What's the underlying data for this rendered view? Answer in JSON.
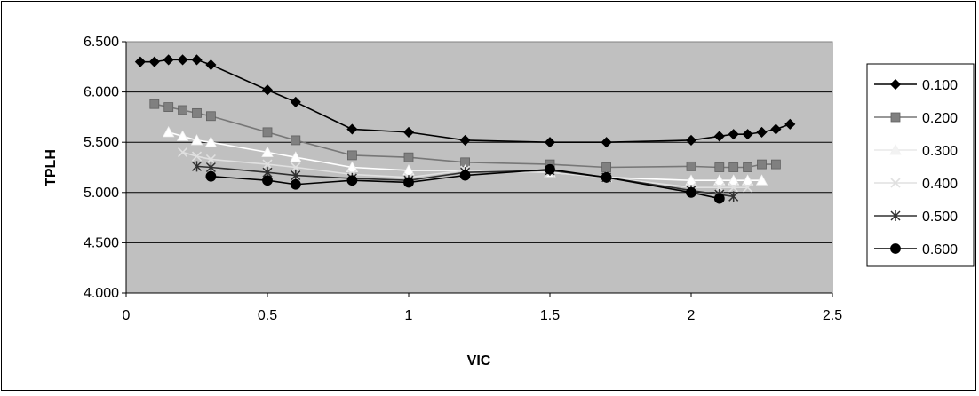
{
  "chart_data": {
    "type": "line",
    "xlabel": "VIC",
    "ylabel": "TPLH",
    "xlim": [
      0,
      2.5
    ],
    "ylim": [
      4.0,
      6.5
    ],
    "x_ticks": [
      "0",
      "0.5",
      "1",
      "1.5",
      "2",
      "2.5"
    ],
    "y_ticks": [
      "4.000",
      "4.500",
      "5.000",
      "5.500",
      "6.000",
      "6.500"
    ],
    "grid": "horizontal",
    "legend_position": "right",
    "plot_background": "#c0c0c0",
    "series": [
      {
        "name": "0.100",
        "color": "#000000",
        "marker": "diamond",
        "marker_fill": "#000000",
        "x": [
          0.05,
          0.1,
          0.15,
          0.2,
          0.25,
          0.3,
          0.5,
          0.6,
          0.8,
          1.0,
          1.2,
          1.5,
          1.7,
          2.0,
          2.1,
          2.15,
          2.2,
          2.25,
          2.3,
          2.35
        ],
        "y": [
          6.3,
          6.3,
          6.32,
          6.32,
          6.32,
          6.27,
          6.02,
          5.9,
          5.63,
          5.6,
          5.52,
          5.5,
          5.5,
          5.52,
          5.56,
          5.58,
          5.58,
          5.6,
          5.63,
          5.68
        ]
      },
      {
        "name": "0.200",
        "color": "#777777",
        "marker": "square",
        "marker_fill": "#808080",
        "x": [
          0.1,
          0.15,
          0.2,
          0.25,
          0.3,
          0.5,
          0.6,
          0.8,
          1.0,
          1.2,
          1.5,
          1.7,
          2.0,
          2.1,
          2.15,
          2.2,
          2.25,
          2.3
        ],
        "y": [
          5.88,
          5.85,
          5.82,
          5.79,
          5.76,
          5.6,
          5.52,
          5.37,
          5.35,
          5.3,
          5.28,
          5.25,
          5.26,
          5.25,
          5.25,
          5.25,
          5.28,
          5.28
        ]
      },
      {
        "name": "0.300",
        "color": "#ffffff",
        "marker": "triangle",
        "marker_fill": "#ffffff",
        "x": [
          0.15,
          0.2,
          0.25,
          0.3,
          0.5,
          0.6,
          0.8,
          1.0,
          1.2,
          1.5,
          1.7,
          2.0,
          2.1,
          2.15,
          2.2,
          2.25
        ],
        "y": [
          5.6,
          5.56,
          5.52,
          5.5,
          5.4,
          5.35,
          5.25,
          5.22,
          5.22,
          5.2,
          5.15,
          5.12,
          5.12,
          5.12,
          5.12,
          5.12
        ]
      },
      {
        "name": "0.400",
        "color": "#e0e0e0",
        "marker": "x",
        "marker_fill": "#e0e0e0",
        "x": [
          0.2,
          0.25,
          0.3,
          0.5,
          0.6,
          0.8,
          1.0,
          1.2,
          1.5,
          1.7,
          2.0,
          2.1,
          2.15,
          2.2
        ],
        "y": [
          5.4,
          5.36,
          5.33,
          5.28,
          5.25,
          5.18,
          5.15,
          5.22,
          5.2,
          5.15,
          5.05,
          5.05,
          5.05,
          5.05
        ]
      },
      {
        "name": "0.500",
        "color": "#303030",
        "marker": "asterisk",
        "marker_fill": "#303030",
        "x": [
          0.25,
          0.3,
          0.5,
          0.6,
          0.8,
          1.0,
          1.2,
          1.5,
          1.7,
          2.0,
          2.1,
          2.15
        ],
        "y": [
          5.26,
          5.25,
          5.2,
          5.17,
          5.14,
          5.12,
          5.2,
          5.22,
          5.15,
          5.02,
          4.98,
          4.96
        ]
      },
      {
        "name": "0.600",
        "color": "#000000",
        "marker": "circle",
        "marker_fill": "#000000",
        "x": [
          0.3,
          0.5,
          0.6,
          0.8,
          1.0,
          1.2,
          1.5,
          1.7,
          2.0,
          2.1
        ],
        "y": [
          5.16,
          5.12,
          5.08,
          5.12,
          5.1,
          5.17,
          5.23,
          5.15,
          5.0,
          4.94
        ]
      }
    ]
  }
}
